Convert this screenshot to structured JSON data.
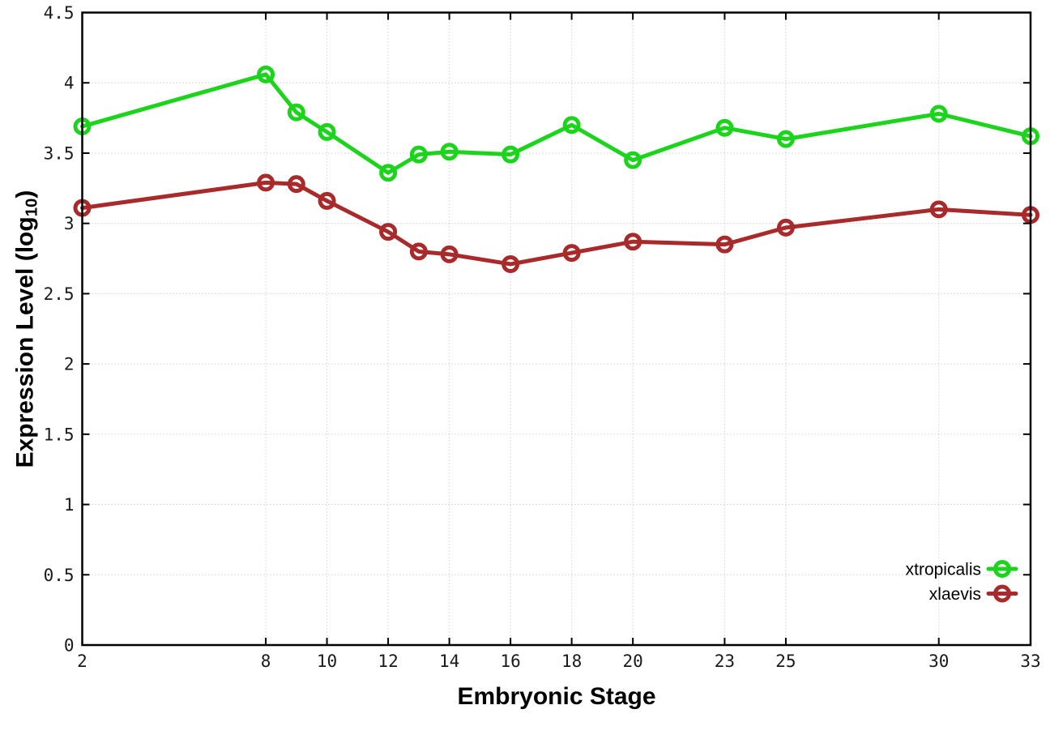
{
  "chart_data": {
    "type": "line",
    "title": "",
    "xlabel": "Embryonic Stage",
    "ylabel": "Expression Level (log10)",
    "ylabel_parts": {
      "main": "Expression Level (log",
      "sub": "10",
      "end": ")"
    },
    "x": [
      2,
      8,
      9,
      10,
      12,
      13,
      14,
      16,
      18,
      20,
      23,
      25,
      30,
      33
    ],
    "xticks": [
      2,
      8,
      10,
      12,
      14,
      16,
      18,
      20,
      23,
      25,
      30,
      33
    ],
    "yticks": [
      0,
      0.5,
      1,
      1.5,
      2,
      2.5,
      3,
      3.5,
      4,
      4.5
    ],
    "xlim": [
      2,
      33
    ],
    "ylim": [
      0,
      4.5
    ],
    "grid": true,
    "legend_position": "bottom-right",
    "marker": "open-circle",
    "series": [
      {
        "name": "xtropicalis",
        "color": "#1cd41c",
        "values": [
          3.69,
          4.06,
          3.79,
          3.65,
          3.36,
          3.49,
          3.51,
          3.49,
          3.7,
          3.45,
          3.68,
          3.6,
          3.78,
          3.62
        ]
      },
      {
        "name": "xlaevis",
        "color": "#a82a2a",
        "values": [
          3.11,
          3.29,
          3.28,
          3.16,
          2.94,
          2.8,
          2.78,
          2.71,
          2.79,
          2.87,
          2.85,
          2.97,
          3.1,
          3.06
        ]
      }
    ]
  }
}
